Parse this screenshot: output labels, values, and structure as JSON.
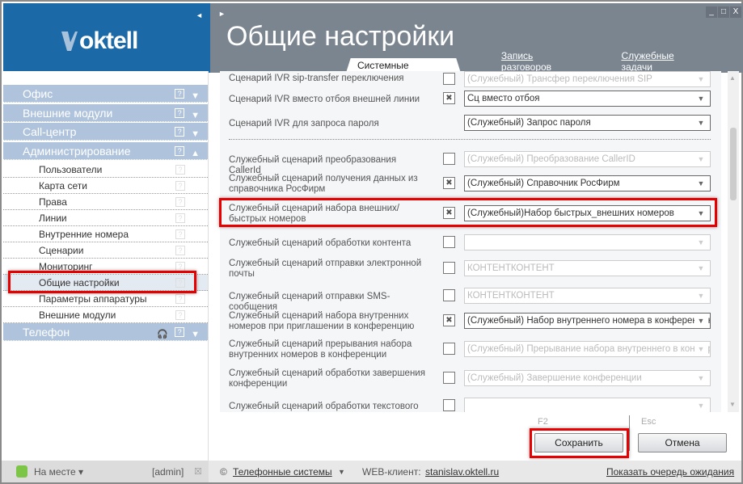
{
  "app": {
    "logo": "oktell",
    "title": "Общие настройки"
  },
  "tabs": [
    {
      "label": "Системные настройки",
      "active": true
    },
    {
      "label": "Запись разговоров",
      "active": false
    },
    {
      "label": "Служебные задачи",
      "active": false
    }
  ],
  "sidebar": {
    "sections": [
      {
        "label": "Офис",
        "expanded": false
      },
      {
        "label": "Внешние модули",
        "expanded": false
      },
      {
        "label": "Call-центр",
        "expanded": false
      },
      {
        "label": "Администрирование",
        "expanded": true
      },
      {
        "label": "Телефон",
        "expanded": false
      }
    ],
    "items": [
      "Пользователи",
      "Карта сети",
      "Права",
      "Линии",
      "Внутренние номера",
      "Сценарии",
      "Мониторинг",
      "Общие настройки",
      "Параметры аппаратуры",
      "Внешние модули"
    ],
    "selected": "Общие настройки"
  },
  "settings": [
    {
      "label": "Сценарий IVR sip-transfer переключения",
      "checked": false,
      "value": "(Служебный) Трансфер переключения SIP",
      "enabled": false
    },
    {
      "label": "Сценарий IVR вместо отбоя внешней линии",
      "checked": true,
      "value": "Сц вместо отбоя",
      "enabled": true
    },
    {
      "label": "Сценарий IVR для запроса пароля",
      "checkbox": false,
      "value": "(Служебный) Запрос пароля",
      "enabled": true
    },
    {
      "label": "Служебный сценарий преобразования CallerId",
      "checked": false,
      "value": "(Служебный) Преобразование CallerID",
      "enabled": false
    },
    {
      "label": "Служебный сценарий получения данных из справочника РосФирм",
      "checked": true,
      "value": "(Служебный) Справочник РосФирм",
      "enabled": true
    },
    {
      "label": "Служебный сценарий набора внешних/быстрых номеров",
      "checked": true,
      "value": "(Служебный)Набор быстрых_внешних номеров",
      "enabled": true,
      "highlighted": true
    },
    {
      "label": "Служебный сценарий обработки контента",
      "checked": false,
      "value": "",
      "enabled": false
    },
    {
      "label": "Служебный сценарий отправки электронной почты",
      "checked": false,
      "value": "КОНТЕНТКОНТЕНТ",
      "enabled": false
    },
    {
      "label": "Служебный сценарий отправки SMS-сообщения",
      "checked": false,
      "value": "КОНТЕНТКОНТЕНТ",
      "enabled": false
    },
    {
      "label": "Служебный сценарий набора внутренних номеров при приглашении в конференцию",
      "checked": true,
      "value": "(Служебный) Набор внутреннего номера в конференцию",
      "enabled": true
    },
    {
      "label": "Служебный сценарий прерывания набора внутренних номеров в конференции",
      "checked": false,
      "value": "(Служебный) Прерывание набора внутреннего в конференции",
      "enabled": false
    },
    {
      "label": "Служебный сценарий обработки завершения конференции",
      "checked": false,
      "value": "(Служебный) Завершение конференции",
      "enabled": false
    },
    {
      "label": "Служебный сценарий обработки текстового SIP-",
      "checked": false,
      "value": "",
      "enabled": false
    }
  ],
  "footer": {
    "save_key": "F2",
    "save": "Сохранить",
    "cancel_key": "Esc",
    "cancel": "Отмена"
  },
  "status": {
    "presence": "На месте",
    "user": "[admin]",
    "company": "Телефонные системы",
    "web_label": "WEB-клиент:",
    "web_link": "stanislav.oktell.ru",
    "queue": "Показать очередь ожидания",
    "presence_color": "#7cc547"
  }
}
